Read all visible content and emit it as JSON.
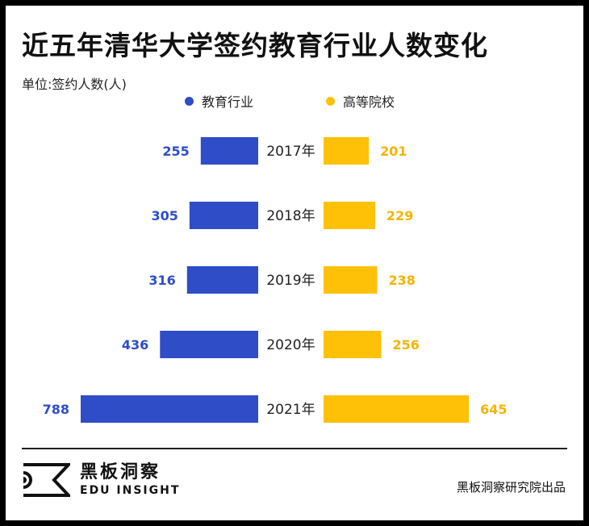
{
  "title": "近五年清华大学签约教育行业人数变化",
  "unit_label": "单位:签约人数(人)",
  "colors": {
    "education": "#2E4DC7",
    "university": "#FFC107",
    "text": "#222222"
  },
  "legend": {
    "education": "教育行业",
    "university": "高等院校"
  },
  "chart_data": {
    "type": "bar",
    "orientation": "horizontal-diverging",
    "title": "近五年清华大学签约教育行业人数变化",
    "ylabel": "单位:签约人数(人)",
    "categories": [
      "2017年",
      "2018年",
      "2019年",
      "2020年",
      "2021年"
    ],
    "series": [
      {
        "name": "教育行业",
        "side": "left",
        "values": [
          255,
          305,
          316,
          436,
          788
        ]
      },
      {
        "name": "高等院校",
        "side": "right",
        "values": [
          201,
          229,
          238,
          256,
          645
        ]
      }
    ],
    "xlim": [
      0,
      788
    ],
    "legend_position": "top"
  },
  "footer": {
    "logo_cn": "黑板洞察",
    "logo_en": "EDU INSIGHT",
    "credit": "黑板洞察研究院出品"
  }
}
